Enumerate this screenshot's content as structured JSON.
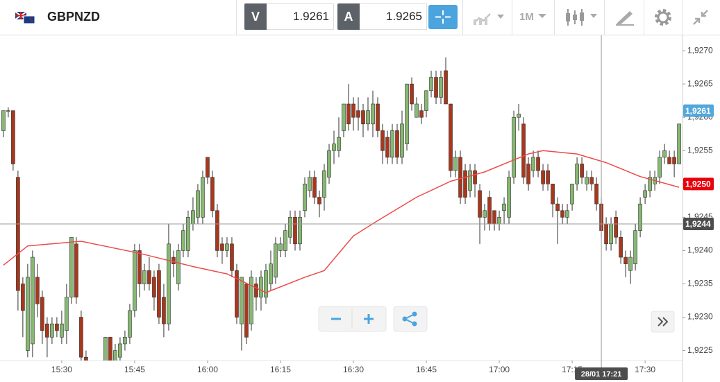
{
  "header": {
    "symbol": "GBPNZD",
    "bid_label": "V",
    "bid": "1.9261",
    "ask_label": "A",
    "ask": "1.9265",
    "timeframe": "1M"
  },
  "chart_data": {
    "type": "candlestick",
    "xlim": [
      917.3,
      1057.7
    ],
    "xticks": [
      {
        "value": 930,
        "label": "15:30"
      },
      {
        "value": 945,
        "label": "15:45"
      },
      {
        "value": 960,
        "label": "16:00"
      },
      {
        "value": 975,
        "label": "16:15"
      },
      {
        "value": 990,
        "label": "16:30"
      },
      {
        "value": 1005,
        "label": "16:45"
      },
      {
        "value": 1020,
        "label": "17:00"
      },
      {
        "value": 1035,
        "label": "17:15"
      },
      {
        "value": 1050,
        "label": "17:30"
      }
    ],
    "ylim": [
      1.92235,
      1.92723
    ],
    "yticks": [
      {
        "value": 1.9225,
        "label": "1,9225"
      },
      {
        "value": 1.923,
        "label": "1,9230"
      },
      {
        "value": 1.9235,
        "label": "1,9235"
      },
      {
        "value": 1.924,
        "label": "1,9240"
      },
      {
        "value": 1.9245,
        "label": "1,9245"
      },
      {
        "value": 1.925,
        "label": "1,9250"
      },
      {
        "value": 1.9255,
        "label": "1,9255"
      },
      {
        "value": 1.926,
        "label": "1,9260"
      },
      {
        "value": 1.9265,
        "label": "1,9265"
      },
      {
        "value": 1.927,
        "label": "1,9270"
      }
    ],
    "grid": false,
    "candles": {
      "up_color": "#86b872",
      "down_color": "#a8371c",
      "edge_color": "#2e2e2e",
      "x": [
        918,
        919,
        920,
        921,
        922,
        923,
        924,
        925,
        926,
        927,
        928,
        929,
        930,
        931,
        932,
        933,
        934,
        935,
        939,
        940,
        941,
        942,
        943,
        944,
        945,
        946,
        947,
        948,
        949,
        950,
        951,
        952,
        953,
        954,
        955,
        956,
        957,
        958,
        959,
        960,
        961,
        962,
        963,
        964,
        965,
        966,
        967,
        968,
        969,
        970,
        971,
        972,
        973,
        974,
        975,
        976,
        977,
        978,
        979,
        980,
        981,
        982,
        983,
        984,
        985,
        986,
        987,
        988,
        989,
        990,
        991,
        992,
        993,
        994,
        995,
        996,
        997,
        998,
        999,
        1000,
        1001,
        1002,
        1003,
        1004,
        1005,
        1006,
        1007,
        1008,
        1009,
        1010,
        1011,
        1012,
        1013,
        1014,
        1015,
        1016,
        1017,
        1018,
        1019,
        1020,
        1021,
        1022,
        1023,
        1024,
        1025,
        1026,
        1027,
        1028,
        1029,
        1030,
        1031,
        1032,
        1033,
        1034,
        1035,
        1036,
        1037,
        1038,
        1039,
        1040,
        1041,
        1042,
        1043,
        1044,
        1045,
        1046,
        1047,
        1048,
        1049,
        1050,
        1051,
        1052,
        1053,
        1054,
        1055,
        1056,
        1057
      ],
      "open": [
        1.9258,
        1.9261,
        1.9261,
        1.9251,
        1.9235,
        1.9225,
        1.9226,
        1.9236,
        1.9233,
        1.9229,
        1.9227,
        1.9229,
        1.9227,
        1.9228,
        1.9233,
        1.9241,
        1.923,
        1.9224,
        1.9223,
        1.9227,
        1.9223,
        1.9224,
        1.9226,
        1.9227,
        1.9231,
        1.924,
        1.9235,
        1.9237,
        1.9236,
        1.9237,
        1.9233,
        1.9229,
        1.9239,
        1.9235,
        1.924,
        1.924,
        1.9244,
        1.9245,
        1.9245,
        1.9254,
        1.9251,
        1.9246,
        1.9241,
        1.924,
        1.9241,
        1.9237,
        1.9229,
        1.9235,
        1.9229,
        1.9235,
        1.9233,
        1.9233,
        1.9235,
        1.9236,
        1.924,
        1.924,
        1.9242,
        1.9245,
        1.9241,
        1.9246,
        1.9249,
        1.9251,
        1.9248,
        1.9248,
        1.9251,
        1.9255,
        1.9255,
        1.9258,
        1.9262,
        1.9262,
        1.9261,
        1.9261,
        1.9259,
        1.9259,
        1.9262,
        1.9258,
        1.9257,
        1.9254,
        1.9258,
        1.9254,
        1.9256,
        1.9265,
        1.926,
        1.9261,
        1.9261,
        1.9264,
        1.9266,
        1.9263,
        1.9267,
        1.9262,
        1.9252,
        1.9254,
        1.9252,
        1.9249,
        1.9252,
        1.9249,
        1.9245,
        1.9248,
        1.9246,
        1.9244,
        1.9246,
        1.9245,
        1.9251,
        1.926,
        1.9259,
        1.9253,
        1.9252,
        1.9254,
        1.9252,
        1.9252,
        1.925,
        1.9247,
        1.9246,
        1.9245,
        1.9247,
        1.925,
        1.9253,
        1.925,
        1.9251,
        1.925,
        1.9247,
        1.9244,
        1.9241,
        1.9245,
        1.9242,
        1.9239,
        1.9237,
        1.9238,
        1.9243,
        1.9248,
        1.9249,
        1.925,
        1.9251,
        1.9254,
        1.9254,
        1.9254,
        1.9253
      ],
      "high": [
        1.9261,
        1.92615,
        1.9261,
        1.9252,
        1.9236,
        1.9238,
        1.924,
        1.9238,
        1.9234,
        1.923,
        1.923,
        1.923,
        1.9231,
        1.9235,
        1.9242,
        1.9242,
        1.9231,
        1.9225,
        1.9227,
        1.9227,
        1.9226,
        1.9227,
        1.9228,
        1.9232,
        1.9241,
        1.9241,
        1.9238,
        1.9239,
        1.9237,
        1.9238,
        1.9235,
        1.9244,
        1.924,
        1.9241,
        1.9244,
        1.9246,
        1.9248,
        1.925,
        1.9252,
        1.9254,
        1.9252,
        1.9247,
        1.9242,
        1.9242,
        1.9242,
        1.9238,
        1.9236,
        1.9235,
        1.9237,
        1.9236,
        1.9237,
        1.9238,
        1.924,
        1.9242,
        1.9242,
        1.9244,
        1.9246,
        1.9246,
        1.9246,
        1.9251,
        1.9252,
        1.9252,
        1.9249,
        1.9253,
        1.9256,
        1.9258,
        1.926,
        1.9262,
        1.9265,
        1.9263,
        1.9263,
        1.9262,
        1.9263,
        1.9264,
        1.9263,
        1.9259,
        1.9258,
        1.9259,
        1.9259,
        1.9261,
        1.9265,
        1.9266,
        1.9263,
        1.9262,
        1.9264,
        1.9267,
        1.9267,
        1.9267,
        1.9269,
        1.9262,
        1.9255,
        1.9255,
        1.9253,
        1.9253,
        1.9253,
        1.925,
        1.9247,
        1.9249,
        1.9246,
        1.9246,
        1.9248,
        1.9252,
        1.9261,
        1.9262,
        1.926,
        1.9254,
        1.9255,
        1.9255,
        1.9253,
        1.9253,
        1.925,
        1.9248,
        1.9247,
        1.9247,
        1.925,
        1.9254,
        1.9254,
        1.9252,
        1.9252,
        1.9251,
        1.9248,
        1.9245,
        1.9245,
        1.9246,
        1.9243,
        1.924,
        1.924,
        1.9244,
        1.9248,
        1.925,
        1.9252,
        1.9252,
        1.9255,
        1.9256,
        1.9255,
        1.9255,
        1.9259
      ],
      "low": [
        1.9257,
        1.926,
        1.9252,
        1.9231,
        1.9227,
        1.9224,
        1.9224,
        1.923,
        1.9226,
        1.9224,
        1.9226,
        1.9227,
        1.9226,
        1.9226,
        1.9232,
        1.9232,
        1.9223,
        1.9222,
        1.9222,
        1.9222,
        1.9222,
        1.9223,
        1.9225,
        1.9226,
        1.923,
        1.9233,
        1.9234,
        1.9234,
        1.9231,
        1.9229,
        1.9227,
        1.9228,
        1.9236,
        1.9234,
        1.9239,
        1.9239,
        1.9243,
        1.9244,
        1.9244,
        1.925,
        1.9245,
        1.9239,
        1.9238,
        1.9239,
        1.9236,
        1.9229,
        1.9225,
        1.9226,
        1.9228,
        1.9231,
        1.9231,
        1.9232,
        1.9234,
        1.9235,
        1.9239,
        1.9239,
        1.9241,
        1.924,
        1.924,
        1.9245,
        1.9248,
        1.9247,
        1.9245,
        1.9246,
        1.925,
        1.9253,
        1.9254,
        1.9257,
        1.9258,
        1.9258,
        1.9258,
        1.9257,
        1.9258,
        1.9257,
        1.9257,
        1.9253,
        1.9253,
        1.9253,
        1.9253,
        1.9253,
        1.9255,
        1.9261,
        1.926,
        1.9259,
        1.926,
        1.9263,
        1.9262,
        1.9262,
        1.9262,
        1.9251,
        1.9251,
        1.9247,
        1.9247,
        1.9248,
        1.9248,
        1.9241,
        1.9243,
        1.9243,
        1.9243,
        1.9243,
        1.9244,
        1.9244,
        1.925,
        1.9258,
        1.925,
        1.9249,
        1.9251,
        1.9251,
        1.9249,
        1.9249,
        1.9245,
        1.9241,
        1.9244,
        1.9244,
        1.9246,
        1.9249,
        1.925,
        1.9249,
        1.9249,
        1.9246,
        1.9242,
        1.924,
        1.924,
        1.9241,
        1.9238,
        1.9236,
        1.9235,
        1.9237,
        1.9242,
        1.9247,
        1.9248,
        1.9249,
        1.925,
        1.9253,
        1.9253,
        1.9251,
        1.9253
      ],
      "close": [
        1.9261,
        1.9261,
        1.9253,
        1.9234,
        1.9231,
        1.9236,
        1.9239,
        1.9232,
        1.9228,
        1.9227,
        1.9229,
        1.9228,
        1.9229,
        1.9233,
        1.9242,
        1.9233,
        1.9224,
        1.9223,
        1.9227,
        1.9223,
        1.9225,
        1.9226,
        1.9227,
        1.9231,
        1.924,
        1.9235,
        1.9237,
        1.9235,
        1.9233,
        1.923,
        1.9229,
        1.9241,
        1.9238,
        1.924,
        1.9243,
        1.9245,
        1.9246,
        1.9249,
        1.9251,
        1.9251,
        1.9246,
        1.924,
        1.924,
        1.9241,
        1.9237,
        1.923,
        1.9236,
        1.9227,
        1.9236,
        1.9233,
        1.9236,
        1.9237,
        1.9238,
        1.9241,
        1.9241,
        1.9243,
        1.9245,
        1.9241,
        1.9245,
        1.925,
        1.9251,
        1.9248,
        1.9247,
        1.9252,
        1.9255,
        1.9256,
        1.9257,
        1.9262,
        1.9259,
        1.926,
        1.926,
        1.9259,
        1.9261,
        1.9262,
        1.9258,
        1.9255,
        1.9254,
        1.9258,
        1.9254,
        1.9259,
        1.9265,
        1.9262,
        1.9262,
        1.926,
        1.9264,
        1.9266,
        1.9263,
        1.9266,
        1.9262,
        1.9252,
        1.9254,
        1.9248,
        1.9248,
        1.9252,
        1.925,
        1.9245,
        1.9246,
        1.9244,
        1.9244,
        1.9245,
        1.9247,
        1.9251,
        1.926,
        1.92605,
        1.9251,
        1.925,
        1.9254,
        1.9252,
        1.925,
        1.925,
        1.9247,
        1.9246,
        1.9245,
        1.9246,
        1.925,
        1.9253,
        1.9251,
        1.9251,
        1.925,
        1.9247,
        1.9243,
        1.9241,
        1.9244,
        1.9242,
        1.9239,
        1.9238,
        1.9239,
        1.9243,
        1.9247,
        1.9249,
        1.9251,
        1.9251,
        1.9254,
        1.9255,
        1.9253,
        1.9253,
        1.9259
      ]
    },
    "moving_average": {
      "color": "#ee4a4a",
      "x": [
        918,
        923,
        934,
        946,
        957,
        964,
        972,
        980,
        984,
        990,
        995,
        1003,
        1010,
        1017,
        1026,
        1029,
        1036,
        1042,
        1049,
        1057
      ],
      "values": [
        1.92378,
        1.92407,
        1.92414,
        1.92396,
        1.92376,
        1.92365,
        1.92337,
        1.9236,
        1.9237,
        1.92422,
        1.92445,
        1.9248,
        1.92504,
        1.92518,
        1.92545,
        1.9255,
        1.92545,
        1.92532,
        1.92511,
        1.92495
      ]
    },
    "price_markers": [
      {
        "value": 1.9261,
        "label": "1,9261",
        "color": "#52a7dd"
      },
      {
        "value": 1.925,
        "label": "1,9250",
        "color": "#e8000b"
      }
    ],
    "crosshair": {
      "y": {
        "value": 1.9244,
        "label": "1,9244"
      },
      "x": {
        "value": 1041,
        "label": "28/01 17:21"
      }
    }
  }
}
